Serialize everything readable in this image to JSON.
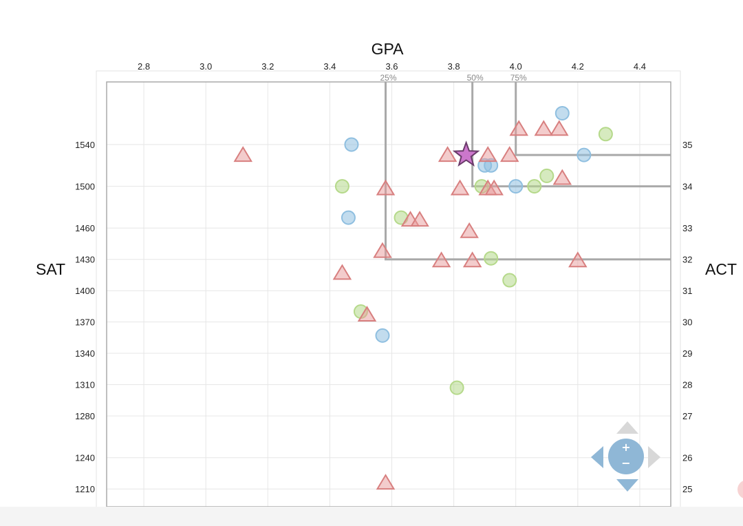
{
  "chart_data": {
    "type": "scatter",
    "title": "",
    "xlabel": "GPA",
    "ylabel_left": "SAT",
    "ylabel_right": "ACT",
    "x_ticks": [
      2.8,
      3.0,
      3.2,
      3.4,
      3.6,
      3.8,
      4.0,
      4.2,
      4.4
    ],
    "xlim": [
      2.68,
      4.5
    ],
    "sat_ticks": [
      1210,
      1240,
      1280,
      1310,
      1340,
      1370,
      1400,
      1430,
      1460,
      1500,
      1540
    ],
    "act_ticks": [
      25,
      26,
      27,
      28,
      29,
      30,
      31,
      32,
      33,
      34,
      35
    ],
    "ylim_sat": [
      1193,
      1600
    ],
    "grid": true,
    "percentile_markers": [
      {
        "label": "25%",
        "gpa": 3.58,
        "sat": 1430
      },
      {
        "label": "50%",
        "gpa": 3.86,
        "sat": 1500
      },
      {
        "label": "75%",
        "gpa": 4.0,
        "sat": 1530
      }
    ],
    "series": [
      {
        "marker": "circle",
        "color": "#8fbfe0",
        "points": [
          [
            4.15,
            1570
          ],
          [
            3.47,
            1540
          ],
          [
            4.22,
            1530
          ],
          [
            3.9,
            1520
          ],
          [
            3.92,
            1520
          ],
          [
            4.0,
            1500
          ],
          [
            3.46,
            1470
          ],
          [
            3.57,
            1357
          ]
        ]
      },
      {
        "marker": "circle",
        "color": "#b5d98a",
        "points": [
          [
            4.29,
            1550
          ],
          [
            3.44,
            1500
          ],
          [
            3.89,
            1500
          ],
          [
            4.06,
            1500
          ],
          [
            4.1,
            1510
          ],
          [
            3.63,
            1470
          ],
          [
            3.92,
            1431
          ],
          [
            3.98,
            1410
          ],
          [
            3.5,
            1380
          ],
          [
            3.81,
            1307
          ]
        ]
      },
      {
        "marker": "triangle",
        "color": "#e79a9a",
        "points": [
          [
            4.01,
            1555
          ],
          [
            4.09,
            1555
          ],
          [
            4.14,
            1555
          ],
          [
            3.12,
            1530
          ],
          [
            3.78,
            1530
          ],
          [
            3.91,
            1530
          ],
          [
            3.98,
            1530
          ],
          [
            3.58,
            1498
          ],
          [
            3.82,
            1498
          ],
          [
            3.91,
            1498
          ],
          [
            3.93,
            1498
          ],
          [
            4.15,
            1508
          ],
          [
            3.66,
            1468
          ],
          [
            3.69,
            1468
          ],
          [
            3.85,
            1457
          ],
          [
            3.57,
            1438
          ],
          [
            3.76,
            1429
          ],
          [
            3.86,
            1429
          ],
          [
            4.2,
            1429
          ],
          [
            3.44,
            1417
          ],
          [
            3.52,
            1377
          ],
          [
            3.58,
            1216
          ]
        ]
      },
      {
        "marker": "star",
        "color": "#cc77cc",
        "points": [
          [
            3.84,
            1530
          ]
        ]
      }
    ]
  }
}
